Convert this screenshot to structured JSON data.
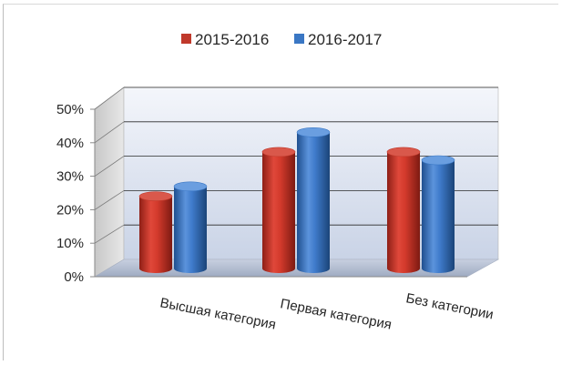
{
  "chart_data": {
    "type": "bar",
    "style": "3d-cylinder",
    "categories": [
      "Высшая категория",
      "Первая категория",
      "Без категории"
    ],
    "series": [
      {
        "name": "2015-2016",
        "color": "#c0392b",
        "values": [
          22,
          35.5,
          35.5
        ]
      },
      {
        "name": "2016-2017",
        "color": "#3a77c4",
        "values": [
          25,
          41.5,
          33
        ]
      }
    ],
    "yticks": [
      "0%",
      "10%",
      "20%",
      "30%",
      "40%",
      "50%"
    ],
    "ylim": [
      0,
      50
    ],
    "grid": true,
    "legend_position": "top"
  }
}
